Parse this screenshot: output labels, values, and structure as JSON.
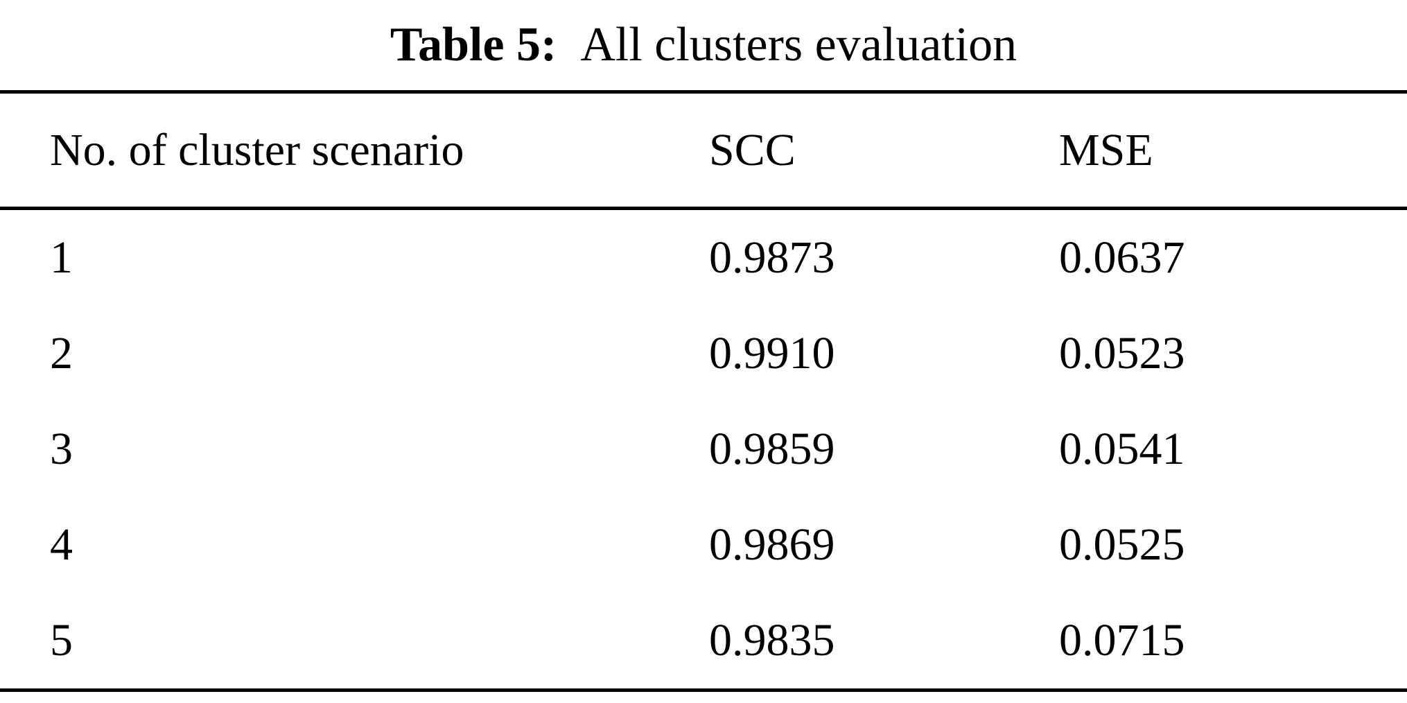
{
  "page": {
    "background": "#ffffff",
    "text_color": "#000000",
    "rule_color": "#000000"
  },
  "table": {
    "caption": {
      "label": "Table 5:",
      "text": "All clusters evaluation"
    },
    "columns": [
      "No. of cluster scenario",
      "SCC",
      "MSE"
    ],
    "rows": [
      {
        "scenario": "1",
        "scc": "0.9873",
        "mse": "0.0637"
      },
      {
        "scenario": "2",
        "scc": "0.9910",
        "mse": "0.0523"
      },
      {
        "scenario": "3",
        "scc": "0.9859",
        "mse": "0.0541"
      },
      {
        "scenario": "4",
        "scc": "0.9869",
        "mse": "0.0525"
      },
      {
        "scenario": "5",
        "scc": "0.9835",
        "mse": "0.0715"
      }
    ]
  }
}
